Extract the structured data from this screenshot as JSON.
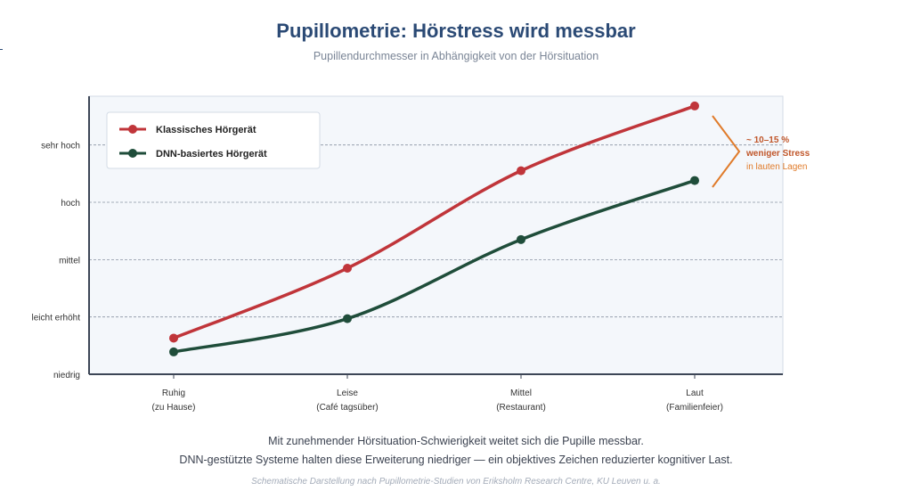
{
  "header": {
    "title": "Pupillometrie: Hörstress wird messbar",
    "subtitle": "Pupillendurchmesser in Abhängigkeit von der Hörsituation"
  },
  "chart_data": {
    "type": "line",
    "title": "Pupillometrie: Hörstress wird messbar",
    "subtitle": "Pupillendurchmesser in Abhängigkeit von der Hörsituation",
    "y_levels": [
      "niedrig",
      "leicht erhöht",
      "mittel",
      "hoch",
      "sehr hoch"
    ],
    "ylim": [
      0,
      4.85
    ],
    "x": [
      {
        "line1": "Ruhig",
        "line2": "(zu Hause)"
      },
      {
        "line1": "Leise",
        "line2": "(Café tagsüber)"
      },
      {
        "line1": "Mittel",
        "line2": "(Restaurant)"
      },
      {
        "line1": "Laut",
        "line2": "(Familienfeier)"
      }
    ],
    "series": [
      {
        "name": "Klassisches Hörgerät",
        "color": "#c0353a",
        "values": [
          0.63,
          1.85,
          3.55,
          4.68
        ]
      },
      {
        "name": "DNN-basiertes Hörgerät",
        "color": "#1f4d3a",
        "values": [
          0.39,
          0.97,
          2.35,
          3.38
        ]
      }
    ],
    "grid": {
      "horizontal": true,
      "style": "dashed"
    },
    "legend": "top-left",
    "annotation": {
      "line1": "~ 10–15 %",
      "line2": "weniger Stress",
      "line3": "in lauten Lagen",
      "color": "#e07b2a"
    }
  },
  "captions": {
    "line1": "Mit zunehmender Hörsituation-Schwierigkeit weitet sich die Pupille messbar.",
    "line2": "DNN-gestützte Systeme halten diese Erweiterung niedriger — ein objektives Zeichen reduzierter kognitiver Last.",
    "source": "Schematische Darstellung nach Pupillometrie-Studien von Eriksholm Research Centre, KU Leuven u. a."
  }
}
